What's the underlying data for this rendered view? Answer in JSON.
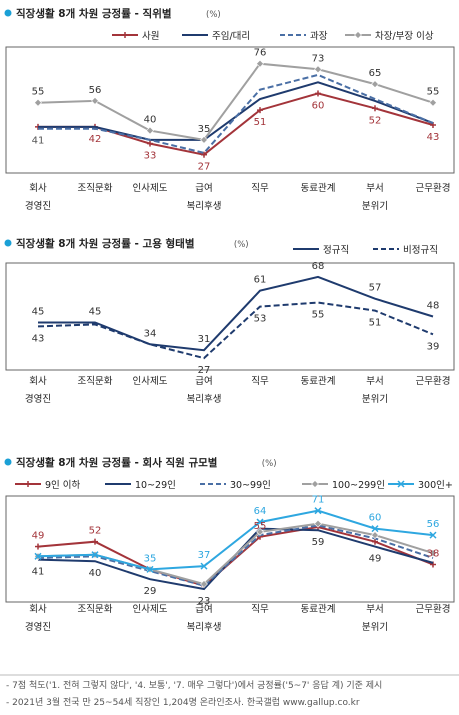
{
  "categories": [
    "회사 경영진",
    "조직문화",
    "인사제도",
    "급여 복리후생",
    "직무",
    "동료관계",
    "부서 분위기",
    "근무환경"
  ],
  "category_lines": [
    [
      "회사",
      "경영진"
    ],
    [
      "조직문화"
    ],
    [
      "인사제도"
    ],
    [
      "급여",
      "복리후생"
    ],
    [
      "직무"
    ],
    [
      "동료관계"
    ],
    [
      "부서",
      "분위기"
    ],
    [
      "근무환경"
    ]
  ],
  "colors": {
    "title_dot": "#1aa0d6",
    "red": "#a3343a",
    "navy": "#1f3b6e",
    "dashed": "#4a6fa5",
    "gray": "#a0a0a0",
    "sky": "#2ea7e0"
  },
  "chart_data": [
    {
      "type": "line",
      "title": "직장생활 8개 차원 긍정률 - 직위별",
      "title_suffix": "(%)",
      "categories": [
        "회사 경영진",
        "조직문화",
        "인사제도",
        "급여 복리후생",
        "직무",
        "동료관계",
        "부서 분위기",
        "근무환경"
      ],
      "ylim": [
        15,
        85
      ],
      "series": [
        {
          "name": "사원",
          "color": "#a3343a",
          "style": "solid-plus",
          "values": [
            42,
            42,
            33,
            27,
            51,
            60,
            52,
            43
          ],
          "label_index": [
            1,
            2,
            3,
            4,
            5,
            6,
            7
          ],
          "label_pos": "below"
        },
        {
          "name": "주임/대리",
          "color": "#1f3b6e",
          "style": "solid",
          "values": [
            42,
            42,
            35,
            35,
            57,
            66,
            56,
            44
          ],
          "label_index": [],
          "label_pos": "below"
        },
        {
          "name": "과장",
          "color": "#4a6fa5",
          "style": "dashed",
          "values": [
            41,
            41,
            35,
            28,
            62,
            70,
            57,
            44
          ],
          "label_index": [
            0
          ],
          "label_pos": "below"
        },
        {
          "name": "차장/부장 이상",
          "color": "#a0a0a0",
          "style": "solid-diamond",
          "values": [
            55,
            56,
            40,
            35,
            76,
            73,
            65,
            55
          ],
          "label_index": [
            0,
            1,
            2,
            3,
            4,
            5,
            6,
            7
          ],
          "label_pos": "above"
        }
      ]
    },
    {
      "type": "line",
      "title": "직장생활 8개 차원 긍정률 - 고용 형태별",
      "title_suffix": "(%)",
      "categories": [
        "회사 경영진",
        "조직문화",
        "인사제도",
        "급여 복리후생",
        "직무",
        "동료관계",
        "부서 분위기",
        "근무환경"
      ],
      "ylim": [
        20,
        75
      ],
      "series": [
        {
          "name": "정규직",
          "color": "#1f3b6e",
          "style": "solid",
          "values": [
            45,
            45,
            34,
            31,
            61,
            68,
            57,
            48
          ],
          "label_index": [
            0,
            1,
            2,
            3,
            4,
            5,
            6,
            7
          ],
          "label_pos": "above"
        },
        {
          "name": "비정규직",
          "color": "#1f3b6e",
          "style": "dashed",
          "values": [
            43,
            44,
            34,
            27,
            53,
            55,
            51,
            39
          ],
          "label_index": [
            0,
            3,
            4,
            5,
            6,
            7
          ],
          "label_pos": "below"
        }
      ]
    },
    {
      "type": "line",
      "title": "직장생활 8개 차원 긍정률 - 회사 직원 규모별",
      "title_suffix": "(%)",
      "categories": [
        "회사 경영진",
        "조직문화",
        "인사제도",
        "급여 복리후생",
        "직무",
        "동료관계",
        "부서 분위기",
        "근무환경"
      ],
      "ylim": [
        15,
        80
      ],
      "series": [
        {
          "name": "9인 이하",
          "color": "#a3343a",
          "style": "solid-plus",
          "values": [
            49,
            52,
            35,
            25,
            55,
            61,
            52,
            38
          ],
          "label_index": [
            0,
            1,
            4,
            7
          ],
          "label_pos": "above"
        },
        {
          "name": "10~29인",
          "color": "#1f3b6e",
          "style": "solid",
          "values": [
            41,
            40,
            29,
            23,
            60,
            59,
            49,
            39
          ],
          "label_index": [
            0,
            1,
            2,
            3,
            5,
            6
          ],
          "label_pos": "below"
        },
        {
          "name": "30~99인",
          "color": "#4a6fa5",
          "style": "dashed",
          "values": [
            42,
            43,
            34,
            25,
            56,
            62,
            54,
            42
          ],
          "label_index": [],
          "label_pos": "below"
        },
        {
          "name": "100~299인",
          "color": "#a0a0a0",
          "style": "solid-diamond",
          "values": [
            43,
            44,
            35,
            26,
            58,
            63,
            56,
            45
          ],
          "label_index": [],
          "label_pos": "below"
        },
        {
          "name": "300인+",
          "color": "#2ea7e0",
          "style": "solid-x",
          "values": [
            43,
            44,
            35,
            37,
            64,
            71,
            60,
            56
          ],
          "label_index": [
            2,
            3,
            4,
            5,
            6,
            7
          ],
          "label_pos": "above"
        }
      ]
    }
  ],
  "value_label_colors": [
    {
      "사원": "#a3343a",
      "과장": "#555555",
      "차장/부장 이상": "#333333"
    },
    {
      "정규직": "#333333",
      "비정규직": "#333333"
    },
    {
      "9인 이하": "#a3343a",
      "10~29인": "#333333",
      "300인+": "#2ea7e0"
    }
  ],
  "notes": [
    "- 7점 척도('1. 전혀 그렇지 않다', '4. 보통', '7. 매우 그렇다')에서 긍정률('5~7' 응답 계) 기준 제시",
    "- 2021년 3월 전국 만 25~54세 직장인 1,204명 온라인조사. 한국갤럽 www.gallup.co.kr"
  ]
}
